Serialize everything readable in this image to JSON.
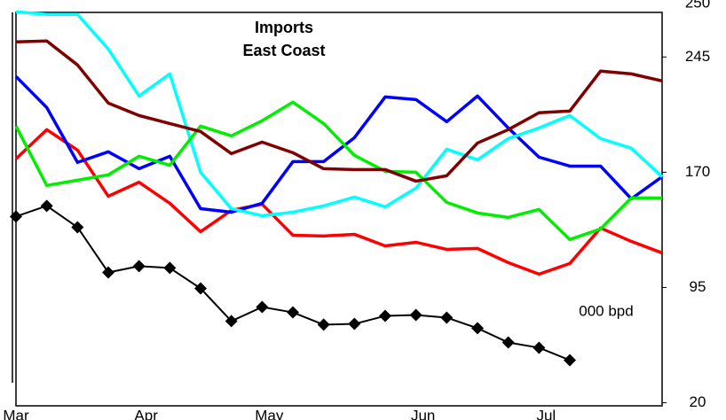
{
  "chart_data": {
    "type": "line",
    "title": [
      "Imports",
      "East Coast"
    ],
    "annotations": {
      "unit": "000 bpd",
      "top_tick": "250"
    },
    "categories": [
      "Mar",
      null,
      null,
      null,
      "Apr",
      null,
      null,
      null,
      "May",
      null,
      null,
      null,
      null,
      "Jun",
      null,
      null,
      null,
      "Jul",
      null,
      null,
      null,
      null
    ],
    "ylim": [
      18,
      274
    ],
    "yticks": [
      20,
      95,
      170,
      245
    ],
    "series": [
      {
        "color": "#ff0000",
        "values": [
          178.7,
          197.7,
          184.4,
          154.4,
          163.5,
          149.8,
          131.3,
          145.2,
          149.2,
          129.0,
          128.5,
          129.6,
          122.1,
          124.4,
          119.8,
          120.4,
          111.2,
          103.7,
          110.6,
          133.7,
          125.0,
          117.5
        ]
      },
      {
        "color": "#0000ff",
        "values": [
          232.3,
          212.1,
          176.4,
          183.3,
          172.3,
          180.4,
          146.3,
          144.0,
          149.8,
          176.9,
          176.9,
          192.5,
          219.0,
          217.3,
          202.9,
          219.6,
          198.8,
          179.8,
          174.0,
          174.0,
          152.7,
          167.1
        ]
      },
      {
        "color": "#00ffff",
        "values": [
          274.4,
          272.7,
          272.7,
          250.2,
          219.6,
          234.0,
          170.0,
          146.3,
          141.7,
          144.0,
          148.1,
          153.8,
          147.5,
          159.6,
          185.0,
          178.1,
          191.9,
          198.8,
          206.9,
          191.9,
          185.6,
          167.1
        ]
      },
      {
        "color": "#00ee00",
        "values": [
          200.0,
          161.4,
          164.8,
          168.3,
          180.4,
          174.6,
          200.0,
          193.7,
          203.5,
          215.6,
          201.7,
          181.0,
          170.6,
          170.0,
          150.4,
          143.5,
          140.6,
          145.8,
          126.2,
          133.1,
          153.3,
          153.3
        ]
      },
      {
        "color": "#800000",
        "values": [
          254.8,
          255.4,
          239.8,
          215.0,
          206.9,
          201.7,
          196.5,
          182.1,
          189.6,
          182.7,
          172.3,
          171.7,
          171.7,
          164.2,
          167.7,
          189.0,
          197.7,
          208.7,
          209.8,
          235.8,
          234.0,
          229.4
        ]
      },
      {
        "color": "#000000",
        "marker": "diamond",
        "values": [
          141.2,
          148.1,
          134.2,
          104.8,
          108.9,
          107.7,
          94.4,
          73.1,
          82.3,
          78.8,
          70.8,
          71.3,
          76.5,
          77.1,
          75.4,
          68.5,
          59.2,
          55.8,
          47.7,
          null,
          null,
          null
        ]
      }
    ]
  }
}
